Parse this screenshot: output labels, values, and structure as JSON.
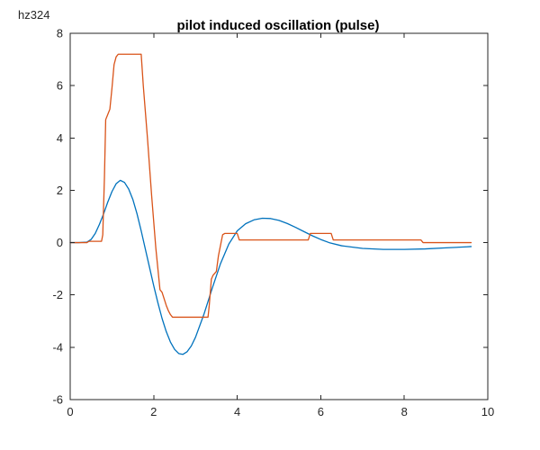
{
  "figure_label": "hz324",
  "chart_data": {
    "type": "line",
    "title": "pilot induced oscillation (pulse)",
    "xlabel": "",
    "ylabel": "",
    "xlim": [
      0,
      10
    ],
    "ylim": [
      -6,
      8
    ],
    "xticks": [
      0,
      2,
      4,
      6,
      8,
      10
    ],
    "yticks": [
      -6,
      -4,
      -2,
      0,
      2,
      4,
      6,
      8
    ],
    "grid": false,
    "legend": "none",
    "series": [
      {
        "color": "#0072BD",
        "x": [
          0,
          0.2,
          0.4,
          0.5,
          0.6,
          0.7,
          0.8,
          0.9,
          1.0,
          1.1,
          1.2,
          1.3,
          1.4,
          1.5,
          1.6,
          1.7,
          1.8,
          1.9,
          2.0,
          2.1,
          2.2,
          2.3,
          2.4,
          2.5,
          2.6,
          2.7,
          2.8,
          2.9,
          3.0,
          3.2,
          3.4,
          3.6,
          3.8,
          4.0,
          4.2,
          4.4,
          4.6,
          4.8,
          5.0,
          5.2,
          5.4,
          5.6,
          5.8,
          6.0,
          6.2,
          6.5,
          7.0,
          7.5,
          8.0,
          8.5,
          9.0,
          9.5,
          9.6
        ],
        "y": [
          0,
          0,
          0.02,
          0.12,
          0.35,
          0.7,
          1.1,
          1.55,
          1.95,
          2.25,
          2.38,
          2.3,
          2.05,
          1.65,
          1.1,
          0.45,
          -0.25,
          -0.95,
          -1.65,
          -2.3,
          -2.9,
          -3.4,
          -3.8,
          -4.08,
          -4.24,
          -4.27,
          -4.17,
          -3.95,
          -3.62,
          -2.75,
          -1.75,
          -0.8,
          -0.05,
          0.45,
          0.72,
          0.87,
          0.93,
          0.92,
          0.85,
          0.73,
          0.58,
          0.42,
          0.26,
          0.12,
          0.0,
          -0.12,
          -0.22,
          -0.26,
          -0.26,
          -0.24,
          -0.2,
          -0.16,
          -0.15
        ]
      },
      {
        "color": "#D95319",
        "x": [
          0,
          0.4,
          0.45,
          0.75,
          0.78,
          0.82,
          0.85,
          0.9,
          0.95,
          1.0,
          1.05,
          1.1,
          1.15,
          1.2,
          1.7,
          1.75,
          1.85,
          1.95,
          2.05,
          2.15,
          2.2,
          2.3,
          2.35,
          2.4,
          2.45,
          2.5,
          3.3,
          3.33,
          3.38,
          3.42,
          3.5,
          3.55,
          3.65,
          3.7,
          4.0,
          4.05,
          5.7,
          5.75,
          6.25,
          6.3,
          8.4,
          8.45,
          9.6
        ],
        "y": [
          0,
          0,
          0.05,
          0.05,
          0.3,
          2.5,
          4.7,
          4.9,
          5.1,
          5.9,
          6.8,
          7.1,
          7.2,
          7.2,
          7.2,
          6.0,
          4.0,
          1.8,
          -0.2,
          -1.8,
          -1.9,
          -2.4,
          -2.6,
          -2.75,
          -2.85,
          -2.85,
          -2.85,
          -2.4,
          -1.4,
          -1.25,
          -1.1,
          -0.5,
          0.3,
          0.35,
          0.35,
          0.1,
          0.1,
          0.35,
          0.35,
          0.1,
          0.1,
          0.0,
          0.0
        ]
      }
    ]
  }
}
